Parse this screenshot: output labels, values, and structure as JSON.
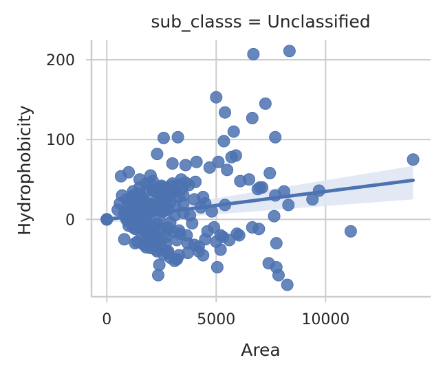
{
  "chart_data": {
    "type": "scatter",
    "title": "sub_classs = Unclassified",
    "xlabel": "Area",
    "ylabel": "Hydrophobicity",
    "xlim": [
      -700,
      14800
    ],
    "ylim": [
      -97,
      225
    ],
    "xticks": [
      0,
      5000,
      10000
    ],
    "xtick_labels": [
      "0",
      "5000",
      "10000"
    ],
    "yticks": [
      0,
      100,
      200
    ],
    "ytick_labels": [
      "0",
      "100",
      "200"
    ],
    "grid": true,
    "legend": "none",
    "marker_color": "#4c72b0",
    "line_color": "#4c72b0",
    "band_color": "#dde5f3",
    "regression": {
      "x": [
        0,
        14000
      ],
      "y": [
        0,
        49
      ],
      "ci_upper": [
        4,
        67
      ],
      "ci_lower": [
        -4,
        25
      ]
    },
    "points": {
      "x": [
        0,
        0,
        0,
        0,
        0,
        0,
        6700,
        8350,
        5000,
        7250,
        5400,
        5800,
        6650,
        7700,
        5350,
        5700,
        2600,
        3250,
        14000,
        2300,
        3000,
        3600,
        4100,
        4700,
        5100,
        5500,
        5900,
        6100,
        6500,
        7000,
        7450,
        8100,
        9700,
        9400,
        8300,
        4400,
        1000,
        650,
        11150,
        7650,
        6900,
        7100,
        6950,
        6650,
        7700,
        5950,
        6050,
        7400,
        7750,
        7850,
        7750,
        8250,
        2400,
        2350,
        3100,
        4200,
        4400,
        5050,
        5200,
        3200,
        4000,
        3700,
        4500,
        5000,
        5200,
        4900,
        4600,
        3900,
        5300,
        5600,
        5400,
        4300,
        4800,
        3500,
        3800,
        2800,
        2900,
        3300,
        600,
        500,
        700,
        900,
        1200,
        1500,
        1800,
        2100,
        2500,
        2700,
        3400,
        2000,
        1600,
        1300,
        800,
        1100,
        1900,
        2200,
        3000,
        2600,
        1400,
        1700,
        1000,
        1200,
        1500,
        1800,
        2100,
        2400,
        2700,
        1300,
        1600,
        1900,
        2200,
        900,
        1100,
        1400,
        1700,
        2000,
        2300,
        2600,
        3100,
        3500,
        1000,
        1300,
        1600,
        1900,
        2200,
        2500,
        2800,
        1150,
        1450,
        1750,
        2050,
        2350,
        2650,
        950,
        1250,
        1550,
        1850,
        2150,
        2450,
        2750,
        3050,
        3350,
        3650,
        850,
        1050,
        1350,
        1650,
        1950,
        2250,
        2550,
        2850,
        3150,
        3450,
        3750,
        4050,
        1200,
        1500,
        1800,
        2100,
        2400,
        2700,
        3000,
        3300,
        3600,
        1400,
        1700,
        2000,
        2300,
        2600,
        2900,
        3200,
        1100,
        1600,
        2100,
        2600,
        3100,
        800,
        1300,
        1800,
        2300,
        2800,
        3300,
        1500,
        2000,
        2500,
        3000,
        3500,
        4000,
        4500,
        1200,
        1700,
        2200,
        2700,
        3200,
        3700,
        4200,
        900,
        1400,
        1900,
        2400,
        2900,
        1000,
        1500,
        2000,
        2500,
        1300,
        1800,
        2300,
        2800,
        3300
      ],
      "y": [
        0,
        0,
        0,
        0,
        0,
        0,
        207,
        211,
        153,
        145,
        134,
        110,
        127,
        103,
        98,
        78,
        102,
        103,
        75,
        82,
        70,
        68,
        72,
        65,
        72,
        62,
        80,
        48,
        50,
        40,
        58,
        35,
        36,
        25,
        18,
        28,
        59,
        54,
        -15,
        4,
        38,
        40,
        -12,
        -10,
        30,
        -18,
        -20,
        -55,
        -60,
        -70,
        -30,
        -82,
        -57,
        -70,
        -52,
        -40,
        -45,
        -60,
        -38,
        -50,
        -32,
        -42,
        -25,
        -28,
        -20,
        -10,
        -15,
        -5,
        -22,
        -26,
        18,
        15,
        10,
        8,
        5,
        12,
        22,
        28,
        20,
        12,
        30,
        25,
        35,
        40,
        45,
        48,
        42,
        38,
        50,
        55,
        28,
        15,
        8,
        10,
        20,
        35,
        45,
        38,
        25,
        18,
        5,
        -5,
        -10,
        -15,
        -20,
        -25,
        -30,
        -5,
        -12,
        -18,
        -22,
        0,
        2,
        5,
        8,
        10,
        12,
        15,
        18,
        20,
        -8,
        -12,
        -20,
        -25,
        -30,
        -35,
        -40,
        6,
        10,
        14,
        18,
        22,
        26,
        -2,
        -4,
        -6,
        -8,
        -10,
        -12,
        -14,
        -16,
        -18,
        -20,
        3,
        7,
        11,
        15,
        19,
        23,
        27,
        31,
        35,
        39,
        43,
        47,
        30,
        32,
        34,
        36,
        38,
        40,
        42,
        44,
        46,
        -28,
        -32,
        -36,
        -40,
        -44,
        -48,
        -50,
        25,
        20,
        15,
        10,
        5,
        -25,
        -30,
        -35,
        -38,
        -42,
        -45,
        50,
        45,
        40,
        35,
        30,
        25,
        20,
        -10,
        -14,
        -18,
        -22,
        -26,
        -30,
        -34,
        12,
        8,
        4,
        0,
        -4,
        22,
        18,
        14,
        10,
        2,
        -2,
        -6,
        -10,
        -14
      ]
    }
  }
}
